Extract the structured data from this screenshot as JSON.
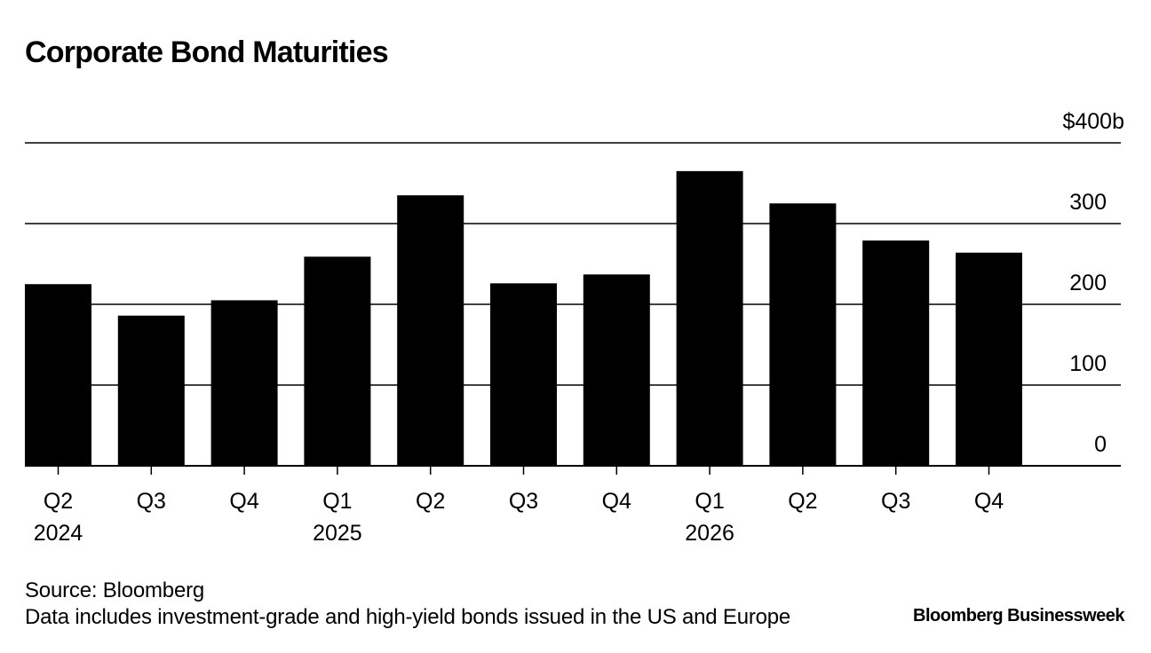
{
  "page": {
    "title": "Corporate Bond Maturities",
    "source": "Source: Bloomberg",
    "note": "Data includes investment-grade and high-yield bonds issued in the US and Europe",
    "brand": "Bloomberg Businessweek"
  },
  "chart_data": {
    "type": "bar",
    "title": "Corporate Bond Maturities",
    "categories": [
      "Q2",
      "Q3",
      "Q4",
      "Q1",
      "Q2",
      "Q3",
      "Q4",
      "Q1",
      "Q2",
      "Q3",
      "Q4"
    ],
    "year_labels": [
      "2024",
      "",
      "",
      "2025",
      "",
      "",
      "",
      "2026",
      "",
      "",
      ""
    ],
    "values": [
      225,
      186,
      205,
      259,
      335,
      226,
      237,
      365,
      325,
      279,
      264
    ],
    "ylim": [
      0,
      400
    ],
    "yticks": [
      0,
      100,
      200,
      300,
      400
    ],
    "ytick_labels": [
      "0",
      "100",
      "200",
      "300",
      "$400b"
    ],
    "xlabel": "",
    "ylabel": "",
    "grid": true,
    "colors": {
      "bar": "#000000",
      "grid": "#000000",
      "text": "#000000"
    }
  }
}
